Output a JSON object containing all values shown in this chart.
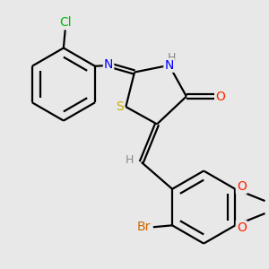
{
  "background_color": "#e8e8e8",
  "bond_color": "#000000",
  "bond_width": 1.6,
  "atom_colors": {
    "Cl": "#00bb00",
    "N": "#0000ff",
    "H": "#888888",
    "S": "#ccaa00",
    "O": "#ff2200",
    "Br": "#cc6600",
    "C": "#000000"
  },
  "font_size": 10,
  "figsize": [
    3.0,
    3.0
  ],
  "dpi": 100
}
